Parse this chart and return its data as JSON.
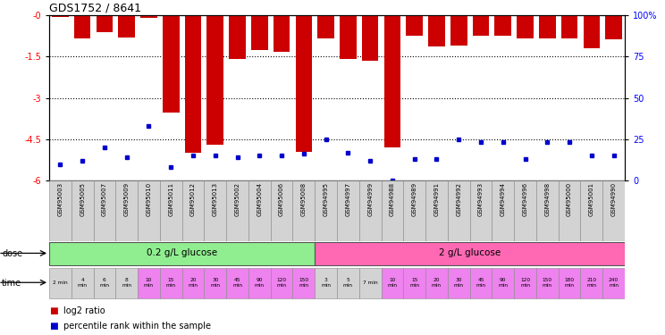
{
  "title": "GDS1752 / 8641",
  "samples": [
    "GSM95003",
    "GSM95005",
    "GSM95007",
    "GSM95009",
    "GSM95010",
    "GSM95011",
    "GSM95012",
    "GSM95013",
    "GSM95002",
    "GSM95004",
    "GSM95006",
    "GSM95008",
    "GSM94995",
    "GSM94997",
    "GSM94999",
    "GSM94988",
    "GSM94989",
    "GSM94991",
    "GSM94992",
    "GSM94993",
    "GSM94994",
    "GSM94996",
    "GSM94998",
    "GSM95000",
    "GSM95001",
    "GSM94990"
  ],
  "log2_ratio": [
    -0.05,
    -0.85,
    -0.6,
    -0.82,
    -0.1,
    -3.55,
    -5.0,
    -4.7,
    -1.58,
    -1.25,
    -1.32,
    -4.95,
    -0.85,
    -1.6,
    -1.65,
    -4.8,
    -0.75,
    -1.15,
    -1.1,
    -0.75,
    -0.75,
    -0.85,
    -0.85,
    -0.85,
    -1.2,
    -0.88
  ],
  "percentile_rank": [
    10,
    12,
    20,
    14,
    33,
    8,
    15,
    15,
    14,
    15,
    15,
    16,
    25,
    17,
    12,
    0,
    13,
    13,
    25,
    23,
    23,
    13,
    23,
    23,
    15,
    15
  ],
  "dose_groups": [
    {
      "label": "0.2 g/L glucose",
      "start": 0,
      "end": 12,
      "color": "#90ee90"
    },
    {
      "label": "2 g/L glucose",
      "start": 12,
      "end": 26,
      "color": "#ff69b4"
    }
  ],
  "time_labels": [
    "2 min",
    "4\nmin",
    "6\nmin",
    "8\nmin",
    "10\nmin",
    "15\nmin",
    "20\nmin",
    "30\nmin",
    "45\nmin",
    "90\nmin",
    "120\nmin",
    "150\nmin",
    "3\nmin",
    "5\nmin",
    "7 min",
    "10\nmin",
    "15\nmin",
    "20\nmin",
    "30\nmin",
    "45\nmin",
    "90\nmin",
    "120\nmin",
    "150\nmin",
    "180\nmin",
    "210\nmin",
    "240\nmin"
  ],
  "time_colors": [
    "#d3d3d3",
    "#d3d3d3",
    "#d3d3d3",
    "#d3d3d3",
    "#ee82ee",
    "#ee82ee",
    "#ee82ee",
    "#ee82ee",
    "#ee82ee",
    "#ee82ee",
    "#ee82ee",
    "#ee82ee",
    "#d3d3d3",
    "#d3d3d3",
    "#d3d3d3",
    "#ee82ee",
    "#ee82ee",
    "#ee82ee",
    "#ee82ee",
    "#ee82ee",
    "#ee82ee",
    "#ee82ee",
    "#ee82ee",
    "#ee82ee",
    "#ee82ee",
    "#ee82ee"
  ],
  "ylim_left": [
    -6,
    0
  ],
  "ylim_right": [
    0,
    100
  ],
  "yticks_left": [
    0,
    -1.5,
    -3,
    -4.5,
    -6
  ],
  "yticks_left_labels": [
    "-0",
    "-1.5",
    "-3",
    "-4.5",
    "-6"
  ],
  "yticks_right": [
    0,
    25,
    50,
    75,
    100
  ],
  "yticks_right_labels": [
    "0",
    "25",
    "50",
    "75",
    "100%"
  ],
  "bar_color": "#cc0000",
  "dot_color": "#0000cc",
  "sample_bg": "#d3d3d3",
  "legend_items": [
    {
      "color": "#cc0000",
      "label": "log2 ratio"
    },
    {
      "color": "#0000cc",
      "label": "percentile rank within the sample"
    }
  ]
}
